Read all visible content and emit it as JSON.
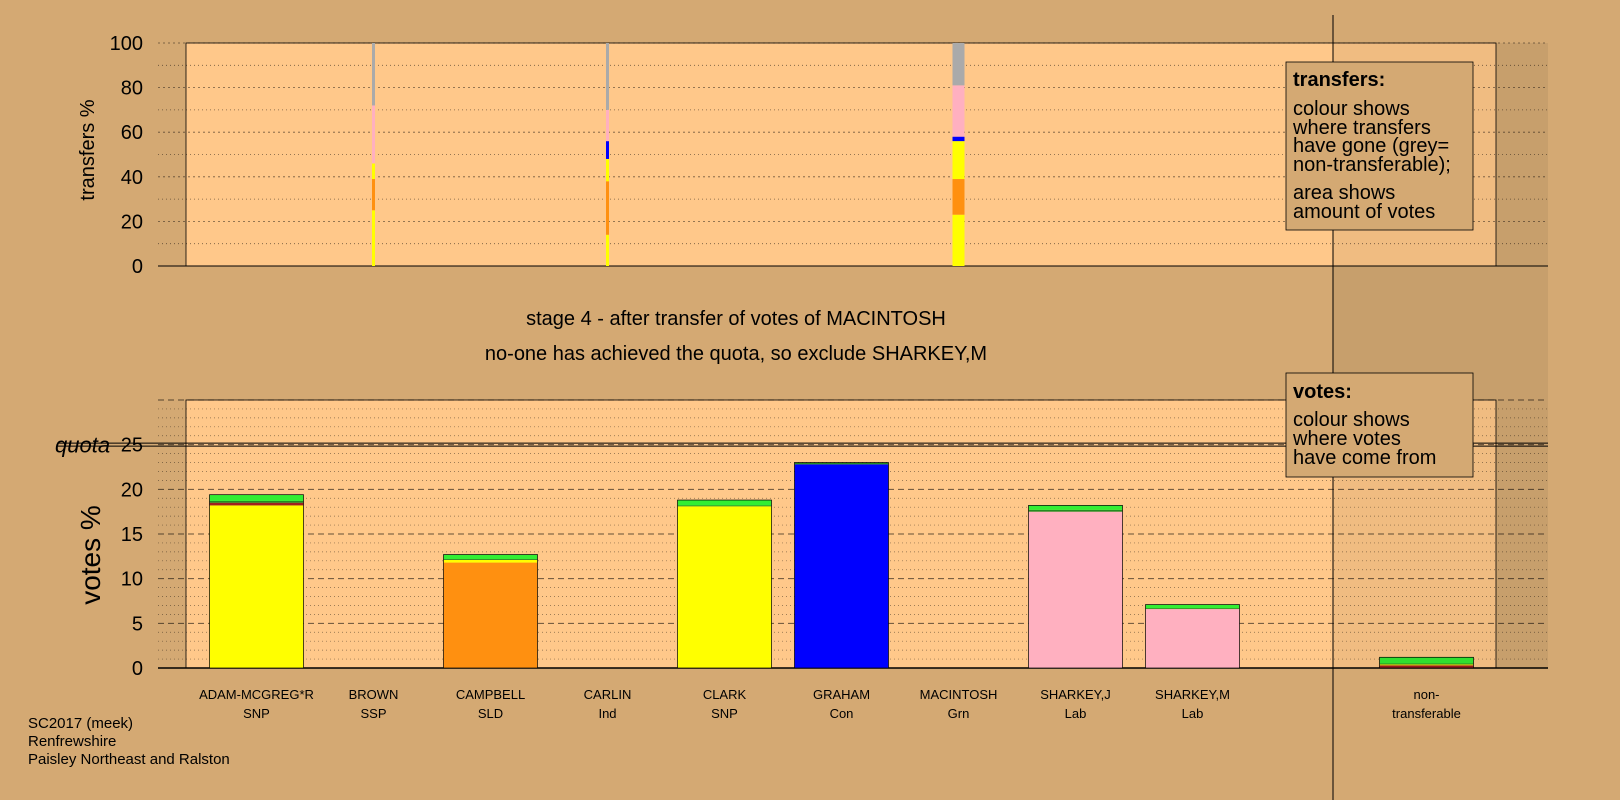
{
  "chart_data": [
    {
      "type": "bar",
      "ylabel": "transfers %",
      "ylim": [
        0,
        100
      ],
      "yticks": [
        0,
        20,
        40,
        60,
        80,
        100
      ],
      "stacked": true,
      "columns": [
        {
          "index": 1,
          "width": "thin",
          "segments": [
            {
              "from": "SNP",
              "color": "#ffff00",
              "value": 25
            },
            {
              "from": "SLD",
              "color": "#ff9010",
              "value": 14
            },
            {
              "from": "SNP",
              "color": "#ffff00",
              "value": 7
            },
            {
              "from": "Lab",
              "color": "#ffb0c0",
              "value": 26
            },
            {
              "from": "non-transferable",
              "color": "#aaaaaa",
              "value": 28
            }
          ]
        },
        {
          "index": 3,
          "width": "thin",
          "segments": [
            {
              "from": "SNP",
              "color": "#ffff00",
              "value": 14
            },
            {
              "from": "SLD",
              "color": "#ff9010",
              "value": 24
            },
            {
              "from": "SNP",
              "color": "#ffff00",
              "value": 10
            },
            {
              "from": "Con",
              "color": "#0000ff",
              "value": 8
            },
            {
              "from": "Lab",
              "color": "#ffb0c0",
              "value": 14
            },
            {
              "from": "non-transferable",
              "color": "#aaaaaa",
              "value": 30
            }
          ]
        },
        {
          "index": 6,
          "width": "wide",
          "segments": [
            {
              "from": "SNP",
              "color": "#ffff00",
              "value": 23
            },
            {
              "from": "SLD",
              "color": "#ff9010",
              "value": 16
            },
            {
              "from": "SNP",
              "color": "#ffff00",
              "value": 17
            },
            {
              "from": "Con",
              "color": "#0000ff",
              "value": 2
            },
            {
              "from": "Lab",
              "color": "#ffb0c0",
              "value": 23
            },
            {
              "from": "non-transferable",
              "color": "#aaaaaa",
              "value": 19
            }
          ]
        }
      ]
    },
    {
      "type": "bar",
      "ylabel": "votes %",
      "ylim": [
        0,
        30
      ],
      "yticks": [
        0,
        5,
        10,
        15,
        20,
        25
      ],
      "quota": 25,
      "quota_label": "quota",
      "stacked": true,
      "categories": [
        {
          "name": "ADAM-MCGREG*R",
          "party": "SNP"
        },
        {
          "name": "BROWN",
          "party": "SSP"
        },
        {
          "name": "CAMPBELL",
          "party": "SLD"
        },
        {
          "name": "CARLIN",
          "party": "Ind"
        },
        {
          "name": "CLARK",
          "party": "SNP"
        },
        {
          "name": "GRAHAM",
          "party": "Con"
        },
        {
          "name": "MACINTOSH",
          "party": "Grn"
        },
        {
          "name": "SHARKEY,J",
          "party": "Lab"
        },
        {
          "name": "SHARKEY,M",
          "party": "Lab"
        },
        {
          "name": "",
          "party": ""
        },
        {
          "name": "non-",
          "party": "transferable"
        }
      ],
      "bars": [
        {
          "index": 0,
          "segments": [
            {
              "color": "#ffff00",
              "value": 18.2
            },
            {
              "color": "#a02020",
              "value": 0.3
            },
            {
              "color": "#228b22",
              "value": 0.2
            },
            {
              "color": "#33ee33",
              "value": 0.7
            }
          ]
        },
        {
          "index": 2,
          "segments": [
            {
              "color": "#ff9010",
              "value": 11.8
            },
            {
              "color": "#ffff00",
              "value": 0.3
            },
            {
              "color": "#228b22",
              "value": 0.1
            },
            {
              "color": "#33ee33",
              "value": 0.5
            }
          ]
        },
        {
          "index": 4,
          "segments": [
            {
              "color": "#ffff00",
              "value": 18.1
            },
            {
              "color": "#228b22",
              "value": 0.1
            },
            {
              "color": "#33ee33",
              "value": 0.6
            }
          ]
        },
        {
          "index": 5,
          "segments": [
            {
              "color": "#0000ff",
              "value": 22.8
            },
            {
              "color": "#228b22",
              "value": 0.2
            }
          ]
        },
        {
          "index": 7,
          "segments": [
            {
              "color": "#ffb0c0",
              "value": 17.5
            },
            {
              "color": "#228b22",
              "value": 0.2
            },
            {
              "color": "#33ee33",
              "value": 0.5
            }
          ]
        },
        {
          "index": 8,
          "segments": [
            {
              "color": "#ffb0c0",
              "value": 6.6
            },
            {
              "color": "#228b22",
              "value": 0.1
            },
            {
              "color": "#33ee33",
              "value": 0.4
            }
          ]
        },
        {
          "index": 10,
          "segments": [
            {
              "color": "#a02020",
              "value": 0.3
            },
            {
              "color": "#ffff00",
              "value": 0.1
            },
            {
              "color": "#228b22",
              "value": 0.1
            },
            {
              "color": "#33ee33",
              "value": 0.7
            }
          ]
        }
      ]
    }
  ],
  "caption": {
    "line1": "stage 4 - after transfer of votes of MACINTOSH",
    "line2": "no-one has achieved the quota, so exclude SHARKEY,M"
  },
  "legend_transfers": {
    "title": "transfers:",
    "lines": [
      "colour shows",
      "where transfers",
      "have gone (grey=",
      "non-transferable);",
      "area shows",
      "amount of votes"
    ]
  },
  "legend_votes": {
    "title": "votes:",
    "lines": [
      "colour shows",
      "where votes",
      "have come from"
    ]
  },
  "footer": [
    "SC2017 (meek)",
    "Renfrewshire",
    "Paisley Northeast and Ralston"
  ],
  "colors": {
    "background": "#d4a973",
    "plot_fill": "#ffc88a",
    "legend_fill": "#d4a973"
  }
}
